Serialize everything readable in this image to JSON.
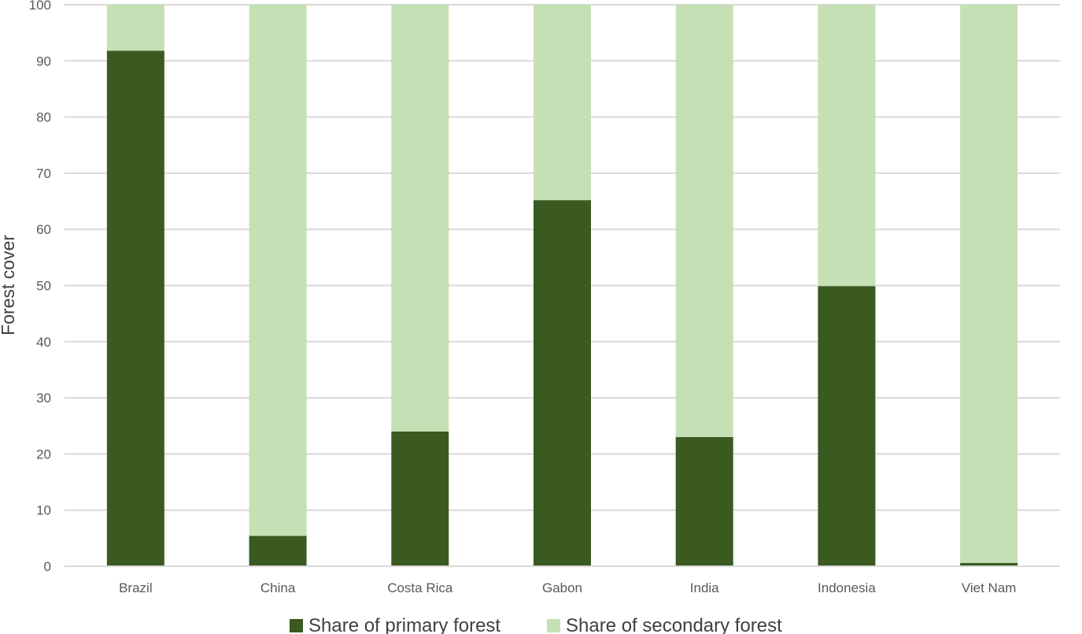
{
  "chart_data": {
    "type": "bar",
    "stacked": true,
    "title": "",
    "xlabel": "",
    "ylabel": "Forest cover",
    "ylim": [
      0,
      100
    ],
    "yticks": [
      0,
      10,
      20,
      30,
      40,
      50,
      60,
      70,
      80,
      90,
      100
    ],
    "grid": true,
    "legend_position": "bottom",
    "categories": [
      "Brazil",
      "China",
      "Costa Rica",
      "Gabon",
      "India",
      "Indonesia",
      "Viet Nam"
    ],
    "series": [
      {
        "name": "Share of primary forest",
        "color": "#3a5a22",
        "values": [
          91.8,
          5.4,
          24.0,
          65.2,
          23.0,
          49.9,
          0.6
        ]
      },
      {
        "name": "Share of secondary forest",
        "color": "#c5e0b4",
        "values": [
          8.2,
          94.6,
          76.0,
          34.8,
          77.0,
          50.1,
          99.4
        ]
      }
    ]
  }
}
